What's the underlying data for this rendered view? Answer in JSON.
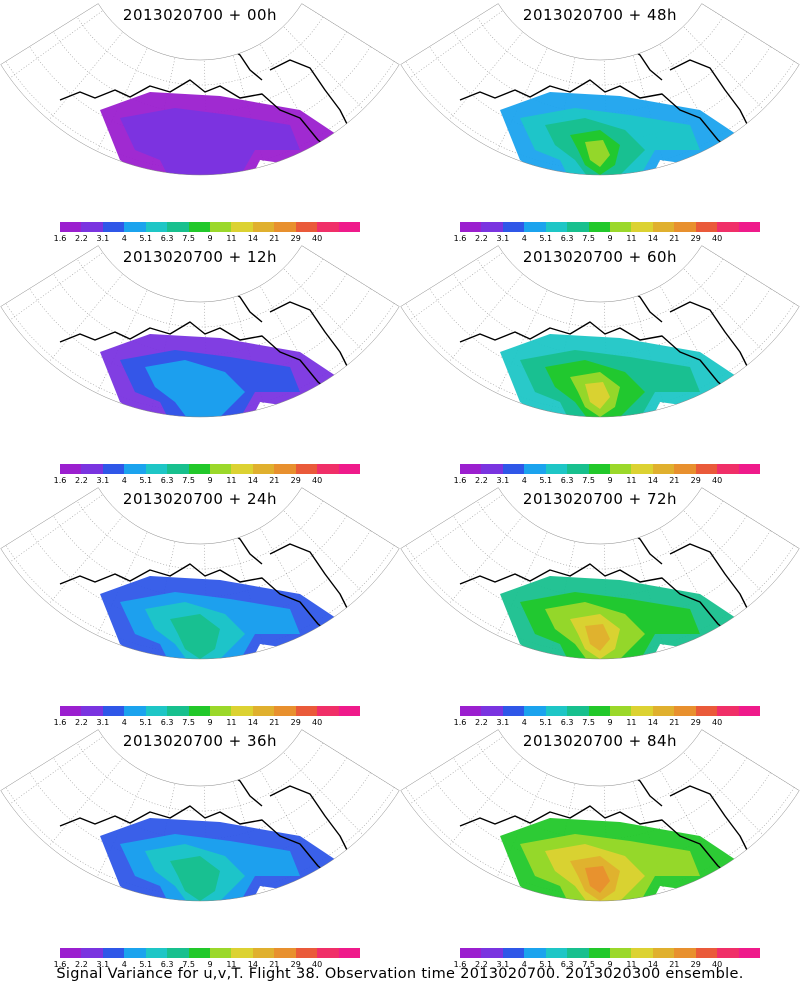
{
  "caption": "Signal Variance for u,v,T. Flight 38. Observation time 2013020700. 2013020300 ensemble.",
  "colorbar": {
    "colors": [
      "#9b1fcf",
      "#7a34e0",
      "#2f57e8",
      "#1ba3ee",
      "#1ec6c6",
      "#18c08e",
      "#22c82a",
      "#9bd82a",
      "#dcd232",
      "#e0b02e",
      "#e8902e",
      "#ea5a3a",
      "#f02f68",
      "#ef1a8a"
    ],
    "labels": [
      "1.6",
      "2.2",
      "3.1",
      "4",
      "5.1",
      "6.3",
      "7.5",
      "9",
      "11",
      "14",
      "21",
      "29",
      "40"
    ]
  },
  "panels": [
    {
      "title": "2013020700 + 00h",
      "level": 0
    },
    {
      "title": "2013020700 + 48h",
      "level": 3
    },
    {
      "title": "2013020700 + 12h",
      "level": 1
    },
    {
      "title": "2013020700 + 60h",
      "level": 4
    },
    {
      "title": "2013020700 + 24h",
      "level": 2
    },
    {
      "title": "2013020700 + 72h",
      "level": 5
    },
    {
      "title": "2013020700 + 36h",
      "level": 2
    },
    {
      "title": "2013020700 + 84h",
      "level": 6
    }
  ]
}
